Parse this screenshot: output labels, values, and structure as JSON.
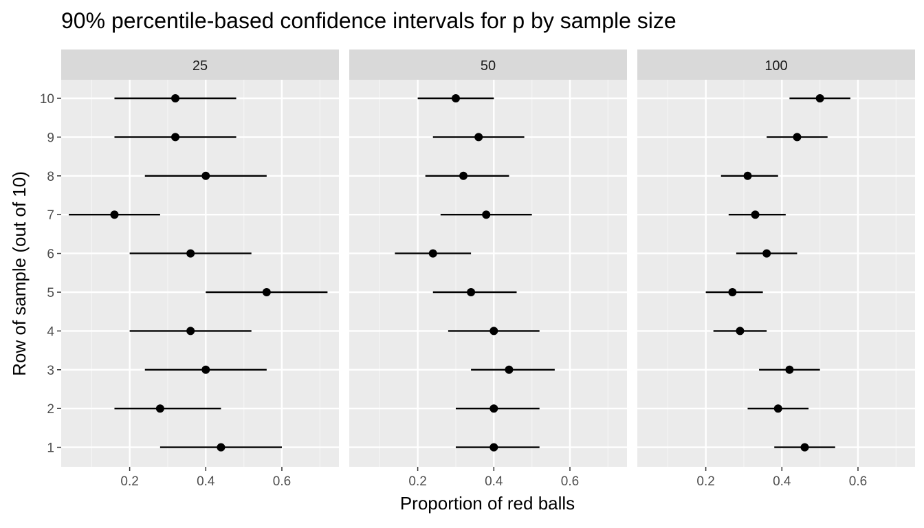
{
  "chart_data": {
    "type": "errorbar",
    "title": "90% percentile-based confidence intervals for p by sample size",
    "xlabel": "Proportion of red balls",
    "ylabel": "Row of sample (out of 10)",
    "xlim": [
      0.02,
      0.75
    ],
    "x_ticks": [
      0.2,
      0.4,
      0.6
    ],
    "x_tick_labels": [
      "0.2",
      "0.4",
      "0.6"
    ],
    "y_ticks": [
      1,
      2,
      3,
      4,
      5,
      6,
      7,
      8,
      9,
      10
    ],
    "y_tick_labels": [
      "1",
      "2",
      "3",
      "4",
      "5",
      "6",
      "7",
      "8",
      "9",
      "10"
    ],
    "grid": true,
    "facets": [
      {
        "label": "25",
        "rows": [
          {
            "row": 10,
            "estimate": 0.32,
            "lower": 0.16,
            "upper": 0.48
          },
          {
            "row": 9,
            "estimate": 0.32,
            "lower": 0.16,
            "upper": 0.48
          },
          {
            "row": 8,
            "estimate": 0.4,
            "lower": 0.24,
            "upper": 0.56
          },
          {
            "row": 7,
            "estimate": 0.16,
            "lower": 0.04,
            "upper": 0.28
          },
          {
            "row": 6,
            "estimate": 0.36,
            "lower": 0.2,
            "upper": 0.52
          },
          {
            "row": 5,
            "estimate": 0.56,
            "lower": 0.4,
            "upper": 0.72
          },
          {
            "row": 4,
            "estimate": 0.36,
            "lower": 0.2,
            "upper": 0.52
          },
          {
            "row": 3,
            "estimate": 0.4,
            "lower": 0.24,
            "upper": 0.56
          },
          {
            "row": 2,
            "estimate": 0.28,
            "lower": 0.16,
            "upper": 0.44
          },
          {
            "row": 1,
            "estimate": 0.44,
            "lower": 0.28,
            "upper": 0.6
          }
        ]
      },
      {
        "label": "50",
        "rows": [
          {
            "row": 10,
            "estimate": 0.3,
            "lower": 0.2,
            "upper": 0.4
          },
          {
            "row": 9,
            "estimate": 0.36,
            "lower": 0.24,
            "upper": 0.48
          },
          {
            "row": 8,
            "estimate": 0.32,
            "lower": 0.22,
            "upper": 0.44
          },
          {
            "row": 7,
            "estimate": 0.38,
            "lower": 0.26,
            "upper": 0.5
          },
          {
            "row": 6,
            "estimate": 0.24,
            "lower": 0.14,
            "upper": 0.34
          },
          {
            "row": 5,
            "estimate": 0.34,
            "lower": 0.24,
            "upper": 0.46
          },
          {
            "row": 4,
            "estimate": 0.4,
            "lower": 0.28,
            "upper": 0.52
          },
          {
            "row": 3,
            "estimate": 0.44,
            "lower": 0.34,
            "upper": 0.56
          },
          {
            "row": 2,
            "estimate": 0.4,
            "lower": 0.3,
            "upper": 0.52
          },
          {
            "row": 1,
            "estimate": 0.4,
            "lower": 0.3,
            "upper": 0.52
          }
        ]
      },
      {
        "label": "100",
        "rows": [
          {
            "row": 10,
            "estimate": 0.5,
            "lower": 0.42,
            "upper": 0.58
          },
          {
            "row": 9,
            "estimate": 0.44,
            "lower": 0.36,
            "upper": 0.52
          },
          {
            "row": 8,
            "estimate": 0.31,
            "lower": 0.24,
            "upper": 0.39
          },
          {
            "row": 7,
            "estimate": 0.33,
            "lower": 0.26,
            "upper": 0.41
          },
          {
            "row": 6,
            "estimate": 0.36,
            "lower": 0.28,
            "upper": 0.44
          },
          {
            "row": 5,
            "estimate": 0.27,
            "lower": 0.2,
            "upper": 0.35
          },
          {
            "row": 4,
            "estimate": 0.29,
            "lower": 0.22,
            "upper": 0.36
          },
          {
            "row": 3,
            "estimate": 0.42,
            "lower": 0.34,
            "upper": 0.5
          },
          {
            "row": 2,
            "estimate": 0.39,
            "lower": 0.31,
            "upper": 0.47
          },
          {
            "row": 1,
            "estimate": 0.46,
            "lower": 0.38,
            "upper": 0.54
          }
        ]
      }
    ],
    "colors": {
      "panel_background": "#ebebeb",
      "grid_major": "#ffffff",
      "grid_minor": "#f5f5f5",
      "strip_background": "#d9d9d9",
      "interval": "#000000",
      "point": "#000000"
    }
  }
}
